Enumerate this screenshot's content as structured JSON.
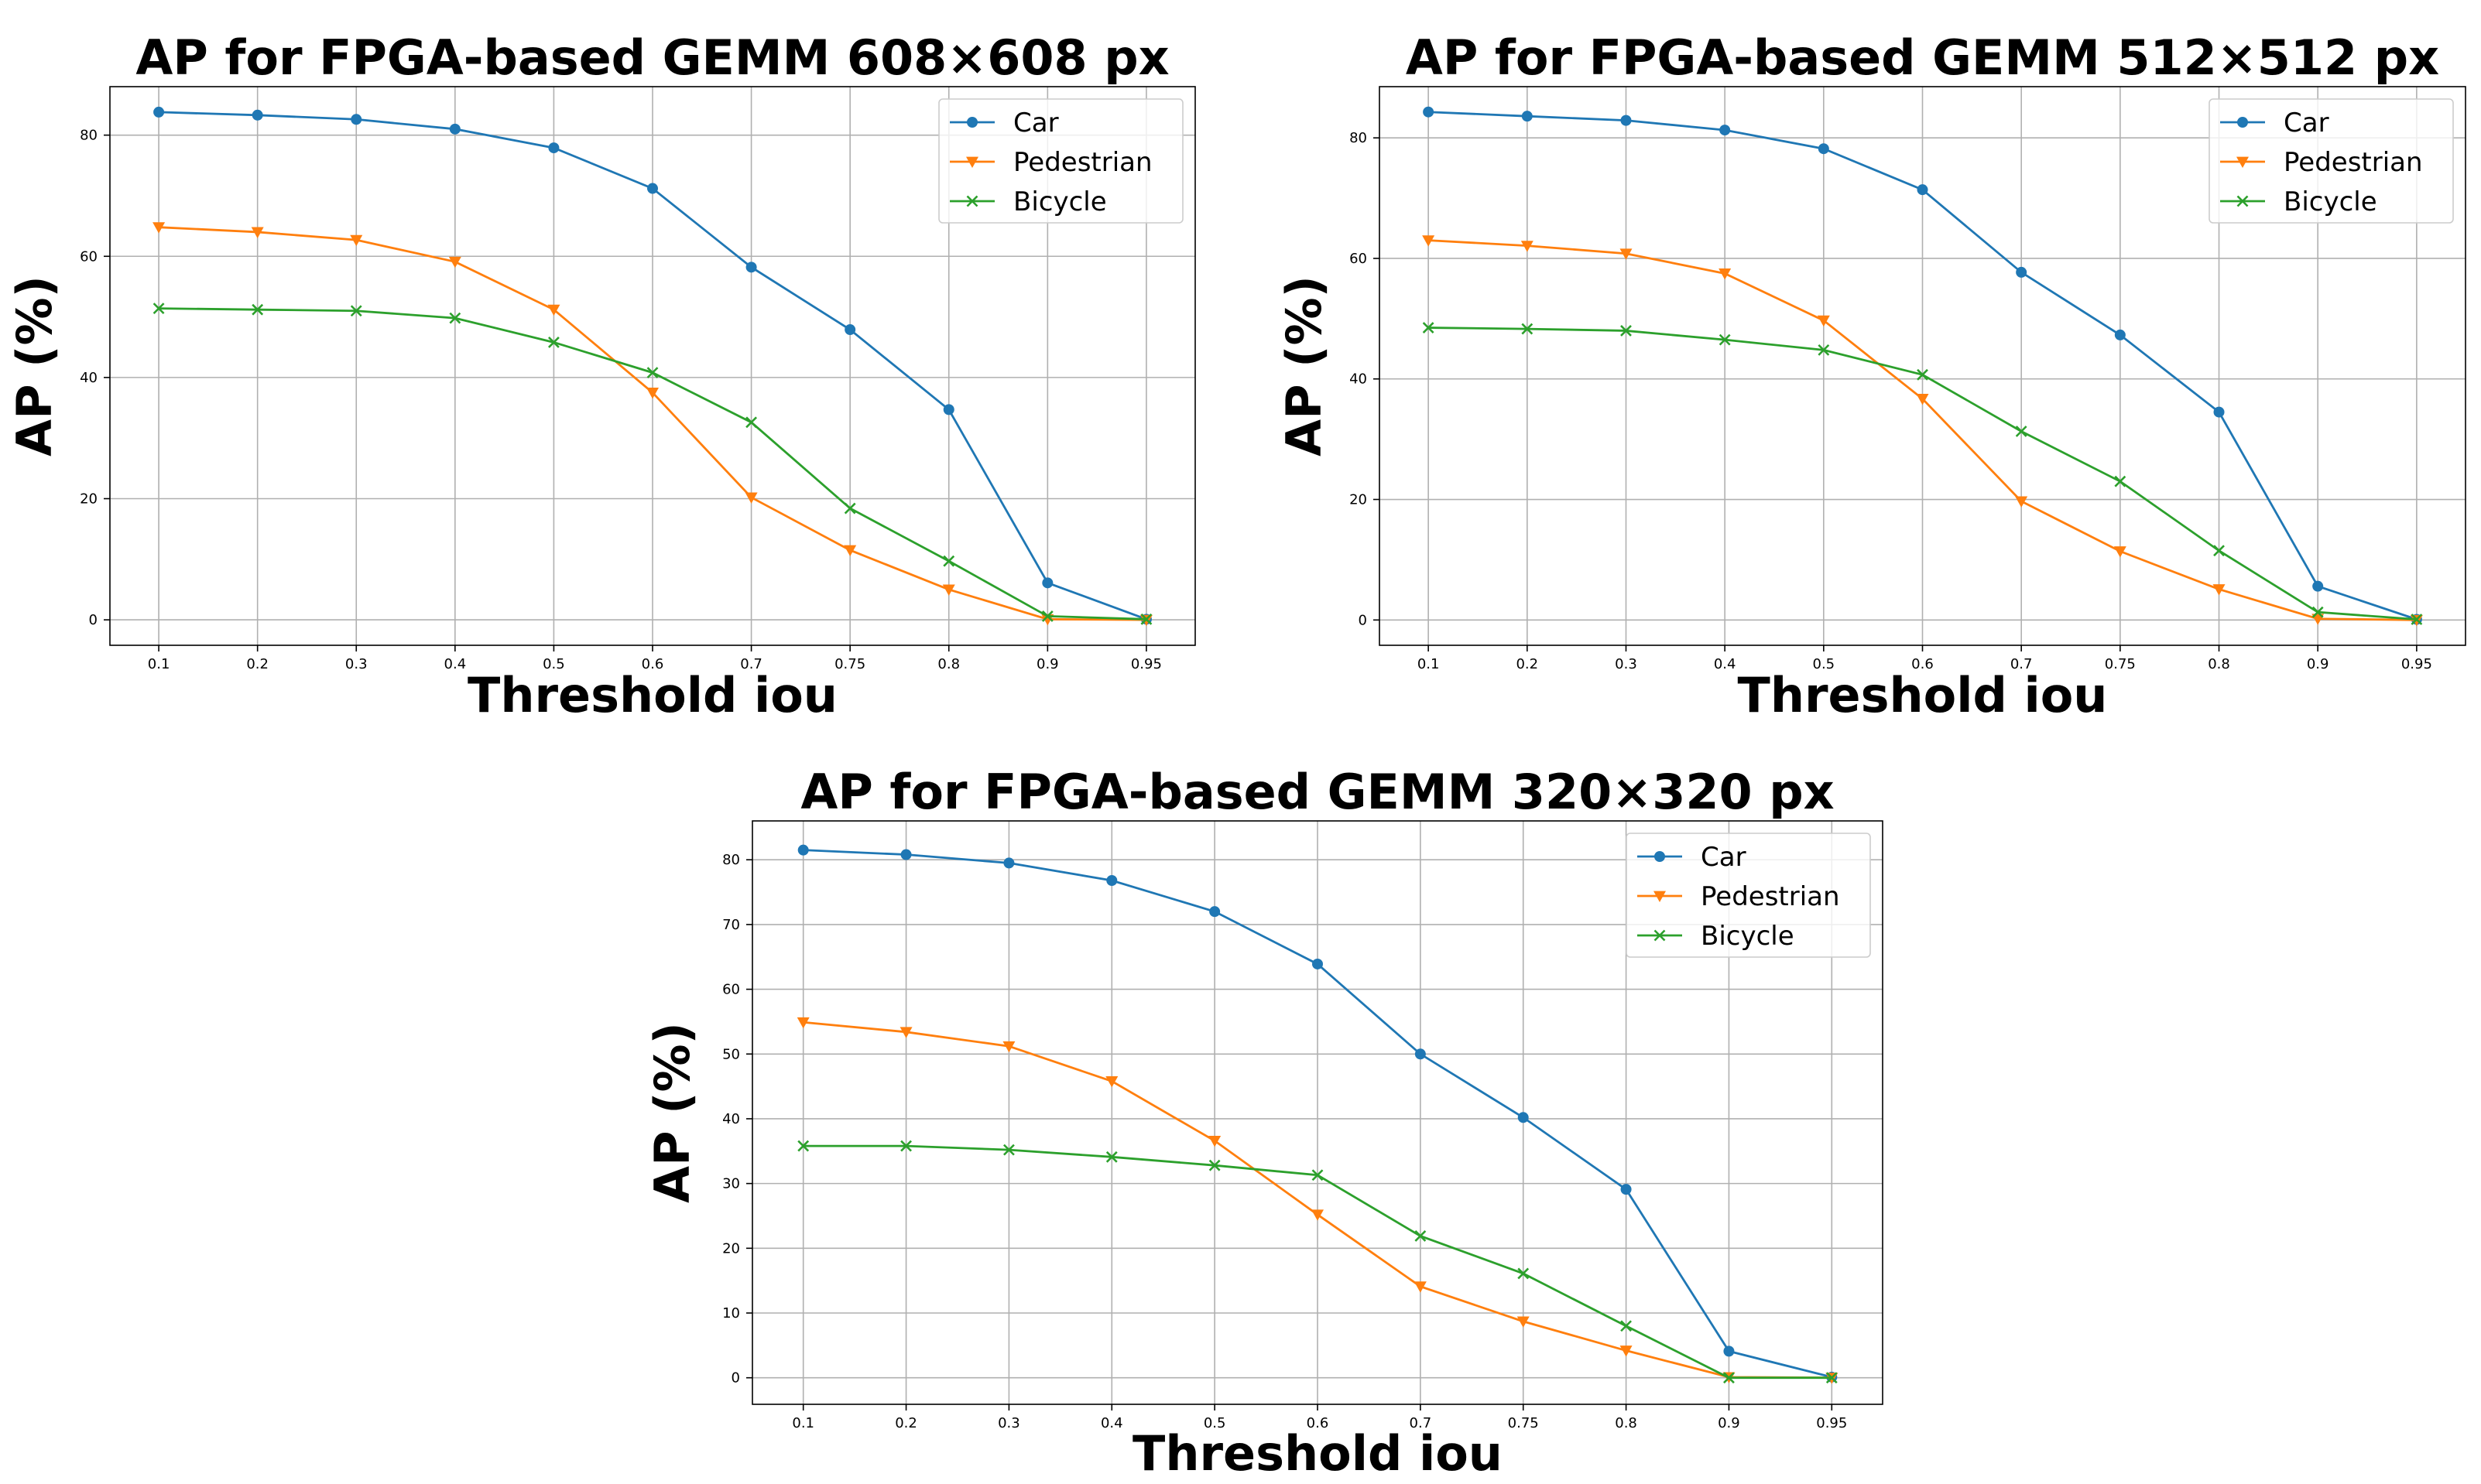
{
  "chart_data": [
    {
      "type": "line",
      "title": "AP for FPGA-based GEMM 608×608 px",
      "xlabel": "Threshold iou",
      "ylabel": "AP (%)",
      "categories": [
        "0.1",
        "0.2",
        "0.3",
        "0.4",
        "0.5",
        "0.6",
        "0.7",
        "0.75",
        "0.8",
        "0.9",
        "0.95"
      ],
      "ylim": [
        -4.2,
        88
      ],
      "yticks": [
        0,
        20,
        40,
        60,
        80
      ],
      "grid": true,
      "legend_position": "top-right",
      "series": [
        {
          "name": "Car",
          "color": "#1f77b4",
          "marker": "circle",
          "values": [
            83.8,
            83.3,
            82.6,
            81.0,
            77.9,
            71.2,
            58.2,
            47.9,
            34.7,
            6.1,
            0.1
          ]
        },
        {
          "name": "Pedestrian",
          "color": "#ff7f0e",
          "marker": "triangle-down",
          "values": [
            64.8,
            64.0,
            62.7,
            59.1,
            51.2,
            37.5,
            20.2,
            11.5,
            5.0,
            0.1,
            0.0
          ]
        },
        {
          "name": "Bicycle",
          "color": "#2ca02c",
          "marker": "x",
          "values": [
            51.4,
            51.2,
            51.0,
            49.8,
            45.8,
            40.8,
            32.6,
            18.4,
            9.7,
            0.6,
            0.1
          ]
        }
      ]
    },
    {
      "type": "line",
      "title": "AP for FPGA-based GEMM 512×512 px",
      "xlabel": "Threshold iou",
      "ylabel": "AP (%)",
      "categories": [
        "0.1",
        "0.2",
        "0.3",
        "0.4",
        "0.5",
        "0.6",
        "0.7",
        "0.75",
        "0.8",
        "0.9",
        "0.95"
      ],
      "ylim": [
        -4.2,
        88.5
      ],
      "yticks": [
        0,
        20,
        40,
        60,
        80
      ],
      "grid": true,
      "legend_position": "top-right",
      "series": [
        {
          "name": "Car",
          "color": "#1f77b4",
          "marker": "circle",
          "values": [
            84.3,
            83.6,
            82.9,
            81.3,
            78.2,
            71.4,
            57.7,
            47.3,
            34.5,
            5.6,
            0.1
          ]
        },
        {
          "name": "Pedestrian",
          "color": "#ff7f0e",
          "marker": "triangle-down",
          "values": [
            63.0,
            62.1,
            60.8,
            57.5,
            49.7,
            36.7,
            19.7,
            11.4,
            5.1,
            0.2,
            0.0
          ]
        },
        {
          "name": "Bicycle",
          "color": "#2ca02c",
          "marker": "x",
          "values": [
            48.5,
            48.3,
            48.0,
            46.5,
            44.8,
            40.7,
            31.3,
            23.0,
            11.5,
            1.3,
            0.1
          ]
        }
      ]
    },
    {
      "type": "line",
      "title": "AP for FPGA-based GEMM 320×320 px",
      "xlabel": "Threshold iou",
      "ylabel": "AP (%)",
      "categories": [
        "0.1",
        "0.2",
        "0.3",
        "0.4",
        "0.5",
        "0.6",
        "0.7",
        "0.75",
        "0.8",
        "0.9",
        "0.95"
      ],
      "ylim": [
        -4.1,
        86
      ],
      "yticks": [
        0,
        10,
        20,
        30,
        40,
        50,
        60,
        70,
        80
      ],
      "grid": true,
      "legend_position": "top-right",
      "series": [
        {
          "name": "Car",
          "color": "#1f77b4",
          "marker": "circle",
          "values": [
            81.5,
            80.8,
            79.5,
            76.8,
            72.0,
            63.9,
            50.0,
            40.2,
            29.1,
            4.1,
            0.1
          ]
        },
        {
          "name": "Pedestrian",
          "color": "#ff7f0e",
          "marker": "triangle-down",
          "values": [
            54.9,
            53.4,
            51.2,
            45.8,
            36.6,
            25.2,
            14.1,
            8.7,
            4.2,
            0.1,
            0.0
          ]
        },
        {
          "name": "Bicycle",
          "color": "#2ca02c",
          "marker": "x",
          "values": [
            35.8,
            35.8,
            35.2,
            34.1,
            32.8,
            31.3,
            21.9,
            16.1,
            8.0,
            0.0,
            0.0
          ]
        }
      ]
    }
  ]
}
